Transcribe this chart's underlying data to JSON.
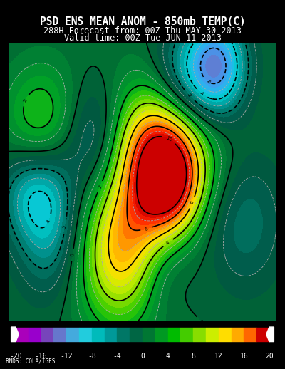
{
  "title_line1": "PSD ENS MEAN ANOM - 850mb TEMP(C)",
  "title_line2": "288H Forecast from: 00Z Thu MAY 30 2013",
  "title_line3": "Valid time: 00Z Tue JUN 11 2013",
  "title_fontsize": 10.5,
  "subtitle_fontsize": 8.5,
  "background_color": "#000000",
  "fig_width": 4.0,
  "fig_height": 5.18,
  "colorbar_colors": [
    "#aa00bb",
    "#9900cc",
    "#7744bb",
    "#6677cc",
    "#44aadd",
    "#22ccdd",
    "#00bbbb",
    "#009999",
    "#007766",
    "#006644",
    "#007733",
    "#009922",
    "#00bb00",
    "#44cc00",
    "#88dd00",
    "#ccee00",
    "#ffdd00",
    "#ffaa00",
    "#ff6600",
    "#cc0000"
  ],
  "colorbar_ticks": [
    -20,
    -16,
    -12,
    -8,
    -4,
    0,
    4,
    8,
    12,
    16,
    20
  ],
  "credit_text": "BNDS: COLA/IGES"
}
